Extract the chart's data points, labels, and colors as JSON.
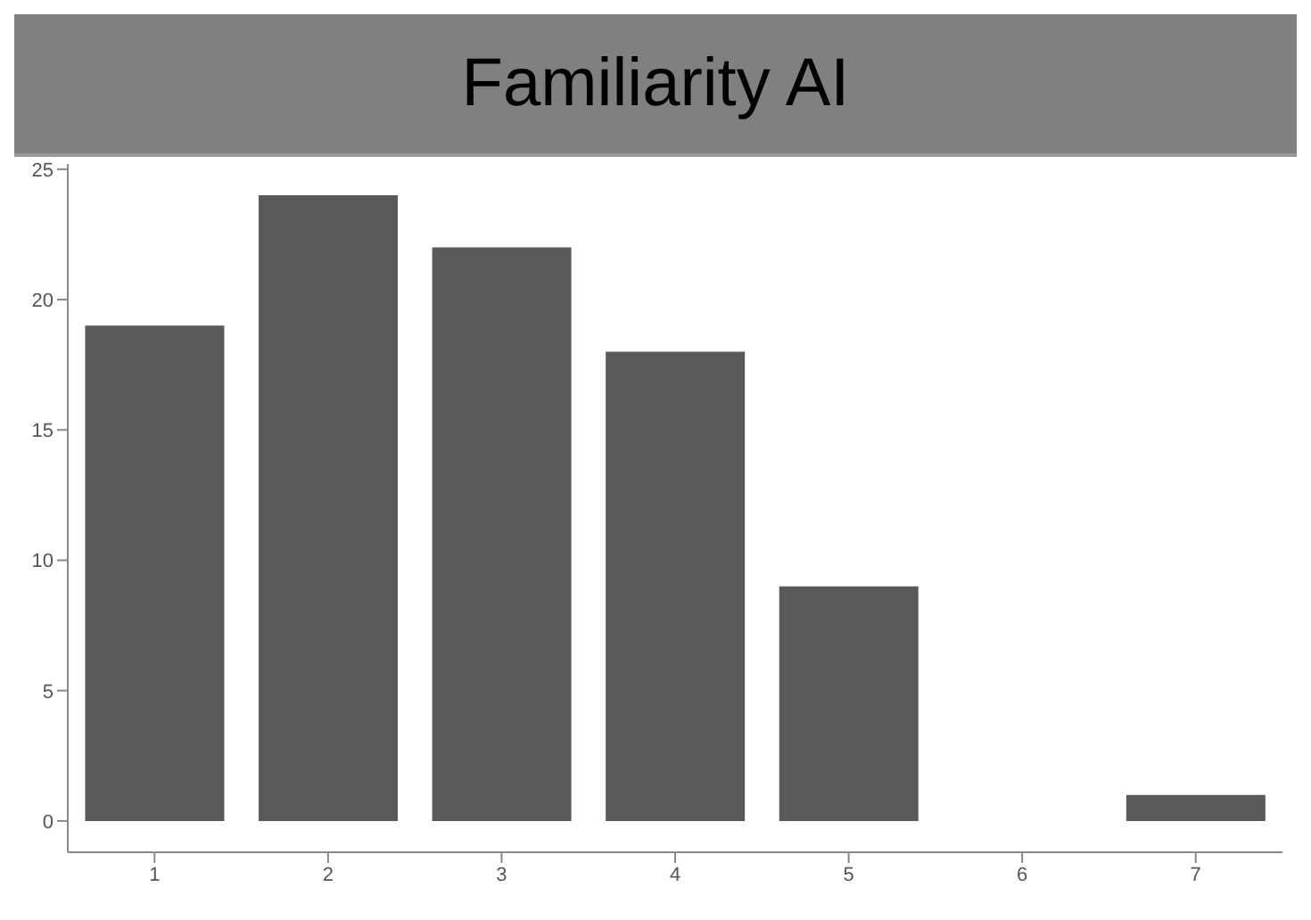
{
  "chart_data": {
    "type": "bar",
    "title": "Familiarity AI",
    "categories": [
      "1",
      "2",
      "3",
      "4",
      "5",
      "6",
      "7"
    ],
    "values": [
      19,
      24,
      22,
      18,
      9,
      0,
      1
    ],
    "color": "#595959",
    "ylim": [
      -1.2,
      25.2
    ],
    "yticks": [
      0,
      5,
      10,
      15,
      20,
      25
    ],
    "grid": false
  }
}
